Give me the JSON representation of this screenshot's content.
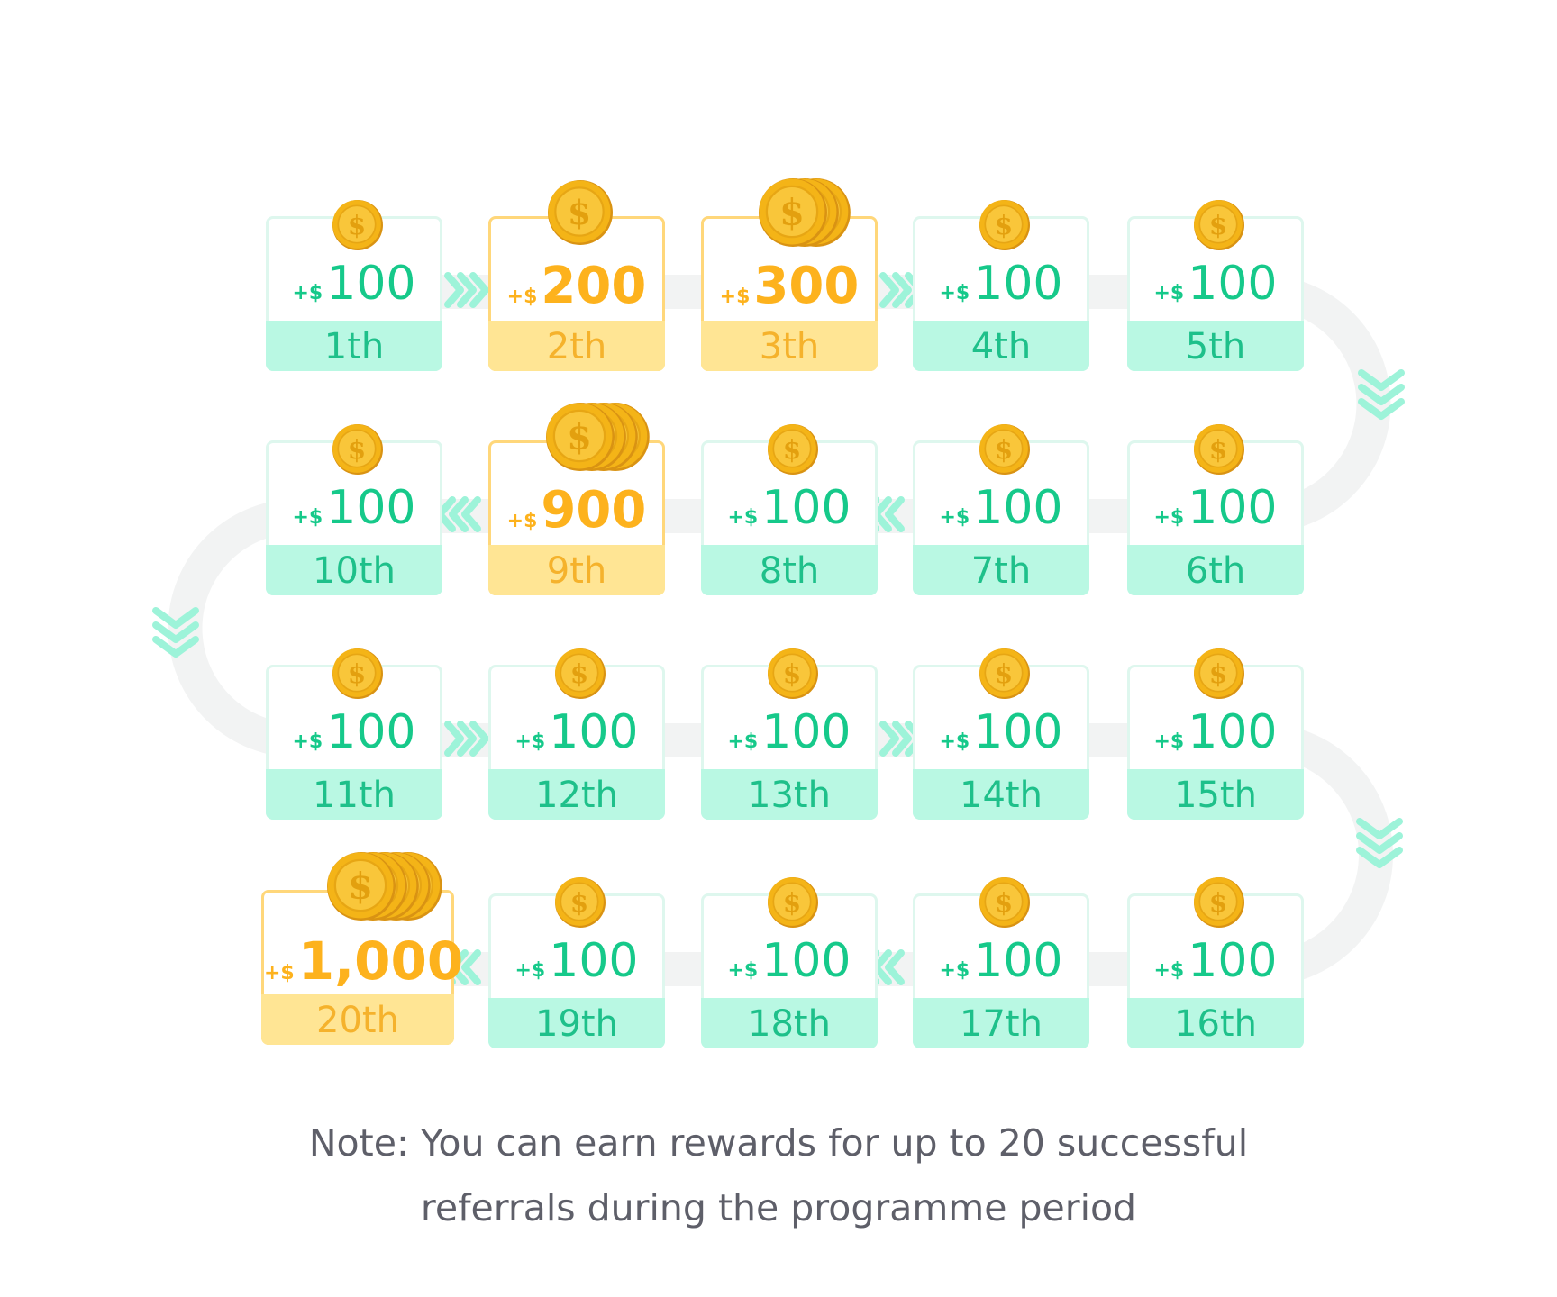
{
  "cards": [
    {
      "prefix": "+$",
      "value": "100",
      "rank": "1th"
    },
    {
      "prefix": "+$",
      "value": "200",
      "rank": "2th"
    },
    {
      "prefix": "+$",
      "value": "300",
      "rank": "3th"
    },
    {
      "prefix": "+$",
      "value": "100",
      "rank": "4th"
    },
    {
      "prefix": "+$",
      "value": "100",
      "rank": "5th"
    },
    {
      "prefix": "+$",
      "value": "100",
      "rank": "6th"
    },
    {
      "prefix": "+$",
      "value": "100",
      "rank": "7th"
    },
    {
      "prefix": "+$",
      "value": "100",
      "rank": "8th"
    },
    {
      "prefix": "+$",
      "value": "900",
      "rank": "9th"
    },
    {
      "prefix": "+$",
      "value": "100",
      "rank": "10th"
    },
    {
      "prefix": "+$",
      "value": "100",
      "rank": "11th"
    },
    {
      "prefix": "+$",
      "value": "100",
      "rank": "12th"
    },
    {
      "prefix": "+$",
      "value": "100",
      "rank": "13th"
    },
    {
      "prefix": "+$",
      "value": "100",
      "rank": "14th"
    },
    {
      "prefix": "+$",
      "value": "100",
      "rank": "15th"
    },
    {
      "prefix": "+$",
      "value": "100",
      "rank": "16th"
    },
    {
      "prefix": "+$",
      "value": "100",
      "rank": "17th"
    },
    {
      "prefix": "+$",
      "value": "100",
      "rank": "18th"
    },
    {
      "prefix": "+$",
      "value": "100",
      "rank": "19th"
    },
    {
      "prefix": "+$",
      "value": "1,000",
      "rank": "20th"
    }
  ],
  "highlighted_ranks": [
    "2th",
    "3th",
    "9th",
    "20th"
  ],
  "coin_counts": {
    "1th": 1,
    "2th": 1,
    "3th": 3,
    "9th": 4,
    "20th": 5
  },
  "note": {
    "line1": "Note: You can earn rewards for up to 20 successful",
    "line2": "referrals during the programme period"
  },
  "colors": {
    "green_text": "#16c98a",
    "green_band": "#b9f8e3",
    "green_border": "#def7ee",
    "gold_text": "#fdb21d",
    "gold_band": "#ffe594",
    "gold_border": "#ffd77a",
    "track": "#f2f3f3",
    "arrow": "#9df3d9",
    "note_text": "#5e5f69"
  },
  "icons": {
    "coin": "dollar-coin-icon",
    "arrow": "chevron-double-arrow-icon"
  }
}
